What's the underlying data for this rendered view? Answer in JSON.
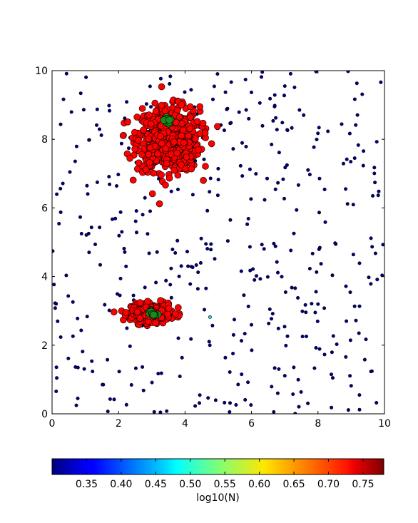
{
  "chart_data": {
    "type": "scatter",
    "xlim": [
      0,
      10
    ],
    "ylim": [
      0,
      10
    ],
    "x_ticks": [
      "0",
      "2",
      "4",
      "6",
      "8",
      "10"
    ],
    "y_ticks": [
      "0",
      "2",
      "4",
      "6",
      "8",
      "10"
    ],
    "grid": false,
    "colorbar": {
      "label": "log10(N)",
      "range": [
        0.3,
        0.78
      ],
      "ticks": [
        "0.35",
        "0.40",
        "0.45",
        "0.50",
        "0.55",
        "0.60",
        "0.65",
        "0.70",
        "0.75"
      ],
      "colormap": "jet"
    },
    "clusters": [
      {
        "kind": "dense",
        "center": [
          3.5,
          8.0
        ],
        "spread": [
          0.85,
          0.85
        ],
        "count": 650,
        "log10N": 0.74,
        "marker_color": "#ff0000",
        "core": {
          "center": [
            3.5,
            8.55
          ],
          "log10N": 0.58,
          "count": 12,
          "marker_color": "#1a8a1a"
        }
      },
      {
        "kind": "dense",
        "center": [
          3.0,
          2.95
        ],
        "spread": [
          0.55,
          0.22
        ],
        "count": 450,
        "log10N": 0.74,
        "marker_color": "#ff0000",
        "core": {
          "center": [
            3.0,
            2.92
          ],
          "log10N": 0.58,
          "count": 10,
          "marker_color": "#1a8a1a"
        }
      }
    ],
    "background": {
      "x_range": [
        0,
        10
      ],
      "y_range": [
        0,
        10
      ],
      "count": 420,
      "log10N": 0.3,
      "marker_color": "#000088"
    },
    "outliers": [
      {
        "x": 4.75,
        "y": 2.82,
        "log10N": 0.48,
        "marker_color": "#22dddd"
      }
    ]
  }
}
